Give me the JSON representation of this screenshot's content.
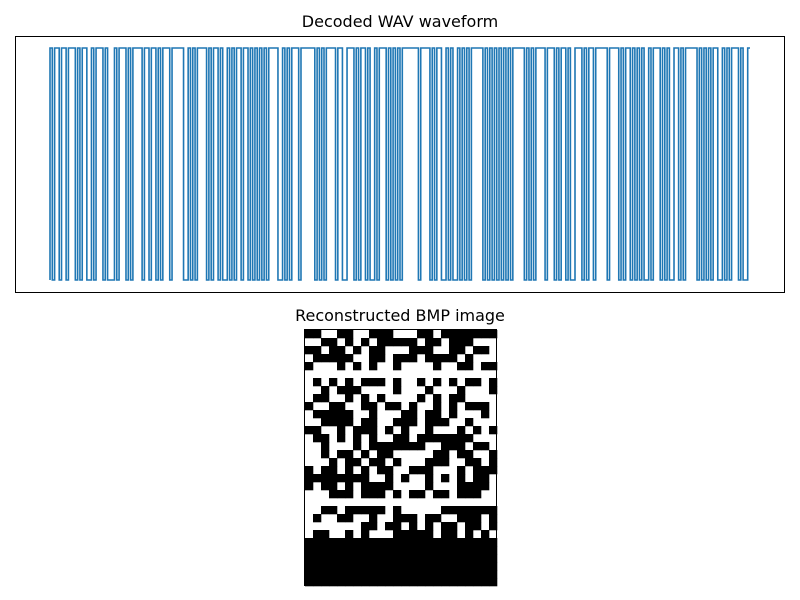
{
  "chart_data": [
    {
      "type": "line",
      "title": "Decoded WAV waveform",
      "series": [
        {
          "color": "#1f77b4",
          "kind": "square-wave",
          "pattern": "1011011011101011001011101000101110101111011011010111011111001010111101011010010101101101010101011110010101110111111010101111011001110101101001011101010101111111011110101100101001010101111101010101010101111101010111101110101101001110101101111101111010110101010010111010100110101111101010101100101011101001",
          "levels": [
            0,
            1
          ]
        }
      ],
      "axes": "off",
      "grid": false
    },
    {
      "type": "heatmap",
      "title": "Reconstructed BMP image",
      "colors": [
        "#ffffff",
        "#000000"
      ],
      "columns": 24,
      "rows": 32,
      "rows_data": [
        "110011001110001101111111",
        "001101010111110110111000",
        "110110101100011100110110",
        "011111001101110111101000",
        "100010101001000010011011",
        "000000000000000000000000",
        "010101011101001010101101",
        "001011100001000100010001",
        "011001010100001010110000",
        "100110011011010010101110",
        "011111001000110110100010",
        "001111011001110111001000",
        "110010111010100100010101",
        "011010101001101111111000",
        "001000101111111001110110",
        "001011010110000011011001",
        "000101101101000111001101",
        "101101010110011100010111",
        "111111110010100101010110",
        "101101011110000100011110",
        "000111011101011011011100",
        "000000000000000000000000",
        "001101111101000001111111",
        "010011001001110110011101",
        "000000011011010101101101",
        "011001010001111101101010",
        "111111111111111111111111",
        "111111111111111111111111",
        "111111111111111111111111",
        "111111111111111111111111",
        "111111111111111111111111",
        "111111111111111111111111"
      ]
    }
  ]
}
